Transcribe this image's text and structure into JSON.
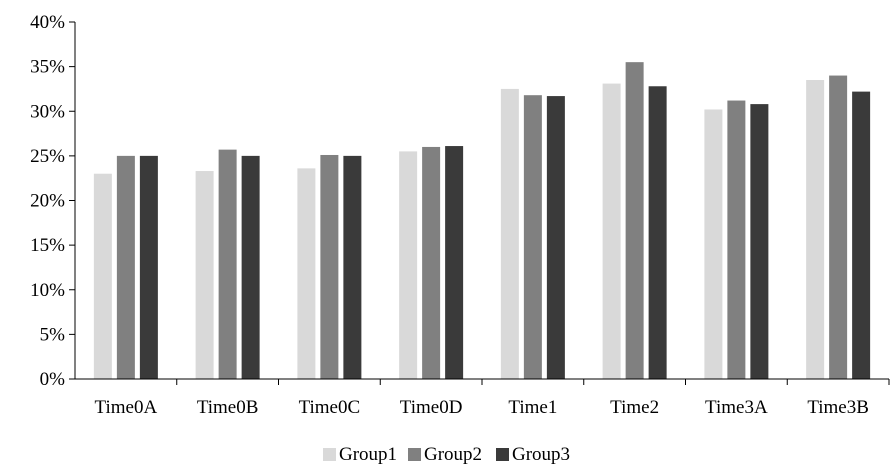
{
  "chart_data": {
    "type": "bar",
    "categories": [
      "Time0A",
      "Time0B",
      "Time0C",
      "Time0D",
      "Time1",
      "Time2",
      "Time3A",
      "Time3B"
    ],
    "series": [
      {
        "name": "Group1",
        "color": "#d9d9d9",
        "values": [
          0.23,
          0.233,
          0.236,
          0.255,
          0.325,
          0.331,
          0.302,
          0.335
        ]
      },
      {
        "name": "Group2",
        "color": "#808080",
        "values": [
          0.25,
          0.257,
          0.251,
          0.26,
          0.318,
          0.355,
          0.312,
          0.34
        ]
      },
      {
        "name": "Group3",
        "color": "#3a3a3a",
        "values": [
          0.25,
          0.25,
          0.25,
          0.261,
          0.317,
          0.328,
          0.308,
          0.322
        ]
      }
    ],
    "ylim": [
      0,
      0.4
    ],
    "ytick_labels": [
      "0%",
      "5%",
      "10%",
      "15%",
      "20%",
      "25%",
      "30%",
      "35%",
      "40%"
    ],
    "ytick_values": [
      0,
      0.05,
      0.1,
      0.15,
      0.2,
      0.25,
      0.3,
      0.35,
      0.4
    ],
    "grid": false,
    "legend_position": "bottom-center"
  }
}
